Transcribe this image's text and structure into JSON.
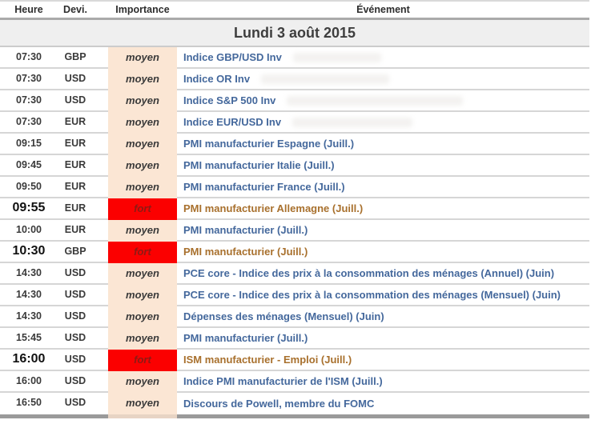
{
  "header": {
    "columns": [
      "Heure",
      "Devi.",
      "Importance",
      "Événement"
    ]
  },
  "date_banner": "Lundi 3 août 2015",
  "rows": [
    {
      "time": "07:30",
      "currency": "GBP",
      "importance": "moyen",
      "event": "Indice GBP/USD Inv",
      "smudge_width": 110
    },
    {
      "time": "07:30",
      "currency": "USD",
      "importance": "moyen",
      "event": "Indice OR Inv",
      "smudge_width": 160
    },
    {
      "time": "07:30",
      "currency": "USD",
      "importance": "moyen",
      "event": "Indice S&P 500 Inv",
      "smudge_width": 220
    },
    {
      "time": "07:30",
      "currency": "EUR",
      "importance": "moyen",
      "event": "Indice EUR/USD Inv",
      "smudge_width": 150
    },
    {
      "time": "09:15",
      "currency": "EUR",
      "importance": "moyen",
      "event": "PMI manufacturier Espagne (Juill.)"
    },
    {
      "time": "09:45",
      "currency": "EUR",
      "importance": "moyen",
      "event": "PMI manufacturier Italie (Juill.)"
    },
    {
      "time": "09:50",
      "currency": "EUR",
      "importance": "moyen",
      "event": "PMI manufacturier France (Juill.)"
    },
    {
      "time": "09:55",
      "currency": "EUR",
      "importance": "fort",
      "event": "PMI manufacturier Allemagne (Juill.)"
    },
    {
      "time": "10:00",
      "currency": "EUR",
      "importance": "moyen",
      "event": "PMI manufacturier (Juill.)"
    },
    {
      "time": "10:30",
      "currency": "GBP",
      "importance": "fort",
      "event": "PMI manufacturier (Juill.)"
    },
    {
      "time": "14:30",
      "currency": "USD",
      "importance": "moyen",
      "event": "PCE core - Indice des prix à la consommation des ménages (Annuel) (Juin)"
    },
    {
      "time": "14:30",
      "currency": "USD",
      "importance": "moyen",
      "event": "PCE core - Indice des prix à la consommation des ménages (Mensuel) (Juin)"
    },
    {
      "time": "14:30",
      "currency": "USD",
      "importance": "moyen",
      "event": "Dépenses des ménages (Mensuel) (Juin)"
    },
    {
      "time": "15:45",
      "currency": "USD",
      "importance": "moyen",
      "event": "PMI manufacturier (Juill.)"
    },
    {
      "time": "16:00",
      "currency": "USD",
      "importance": "fort",
      "event": "ISM manufacturier - Emploi (Juill.)"
    },
    {
      "time": "16:00",
      "currency": "USD",
      "importance": "moyen",
      "event": "Indice PMI manufacturier de l'ISM (Juill.)"
    },
    {
      "time": "16:50",
      "currency": "USD",
      "importance": "moyen",
      "event": "Discours de Powell, membre du FOMC"
    }
  ],
  "colors": {
    "event_link_blue": "#44689c",
    "event_header_blue": "#3f66a0",
    "importance_medium_bg": "#fbe6d4",
    "importance_high_bg": "#fb0000",
    "importance_high_text": "#8e1a14",
    "high_importance_event_text": "#a8702d",
    "date_banner_bg": "#efefef",
    "separator_gray": "#d6d6d6",
    "bottom_bar_gray": "#9a9a9a"
  }
}
